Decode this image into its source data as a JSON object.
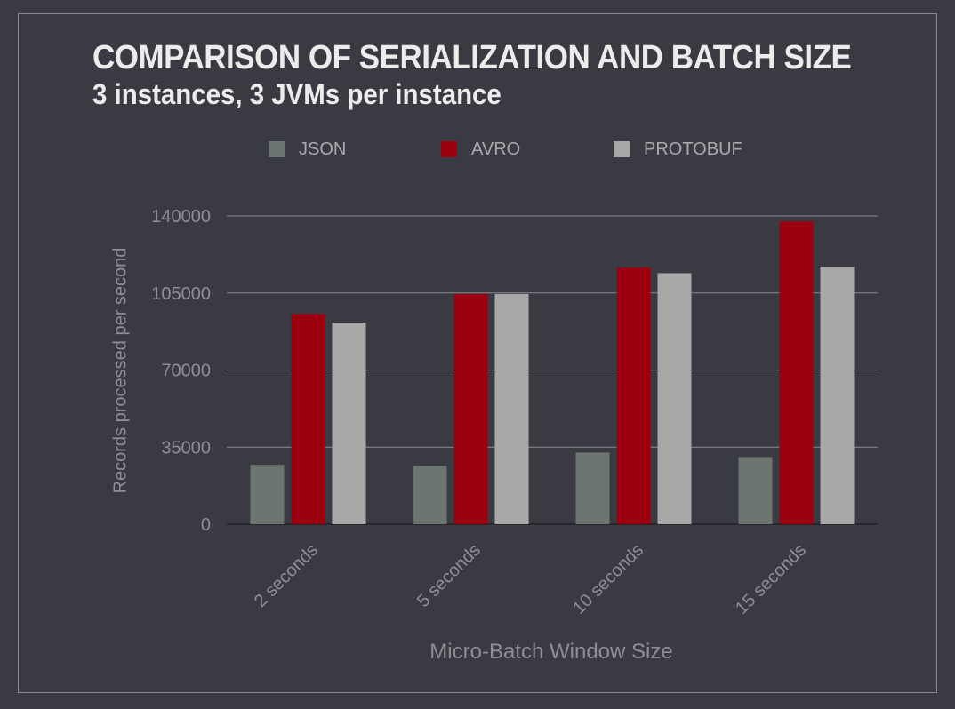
{
  "colors": {
    "background": "#3a3b42",
    "json": "#6c756f",
    "avro": "#9c0010",
    "protobuf": "#a8a8a8",
    "grid": "#8a8b90",
    "tick_text": "#8e8f94"
  },
  "chart_data": {
    "type": "bar",
    "title": "COMPARISON OF SERIALIZATION AND BATCH SIZE",
    "subtitle": "3 instances, 3 JVMs per instance",
    "xlabel": "Micro-Batch Window Size",
    "ylabel": "Records processed per second",
    "categories": [
      "2 seconds",
      "5 seconds",
      "10 seconds",
      "15 seconds"
    ],
    "series": [
      {
        "name": "JSON",
        "values": [
          27000,
          26500,
          32500,
          30500
        ]
      },
      {
        "name": "AVRO",
        "values": [
          95500,
          104500,
          116500,
          137500
        ]
      },
      {
        "name": "PROTOBUF",
        "values": [
          91500,
          104500,
          114000,
          117000
        ]
      }
    ],
    "yticks": [
      "0",
      "35000",
      "70000",
      "105000",
      "140000"
    ],
    "ylim": [
      0,
      140000
    ],
    "grid": true,
    "legend_position": "top"
  }
}
